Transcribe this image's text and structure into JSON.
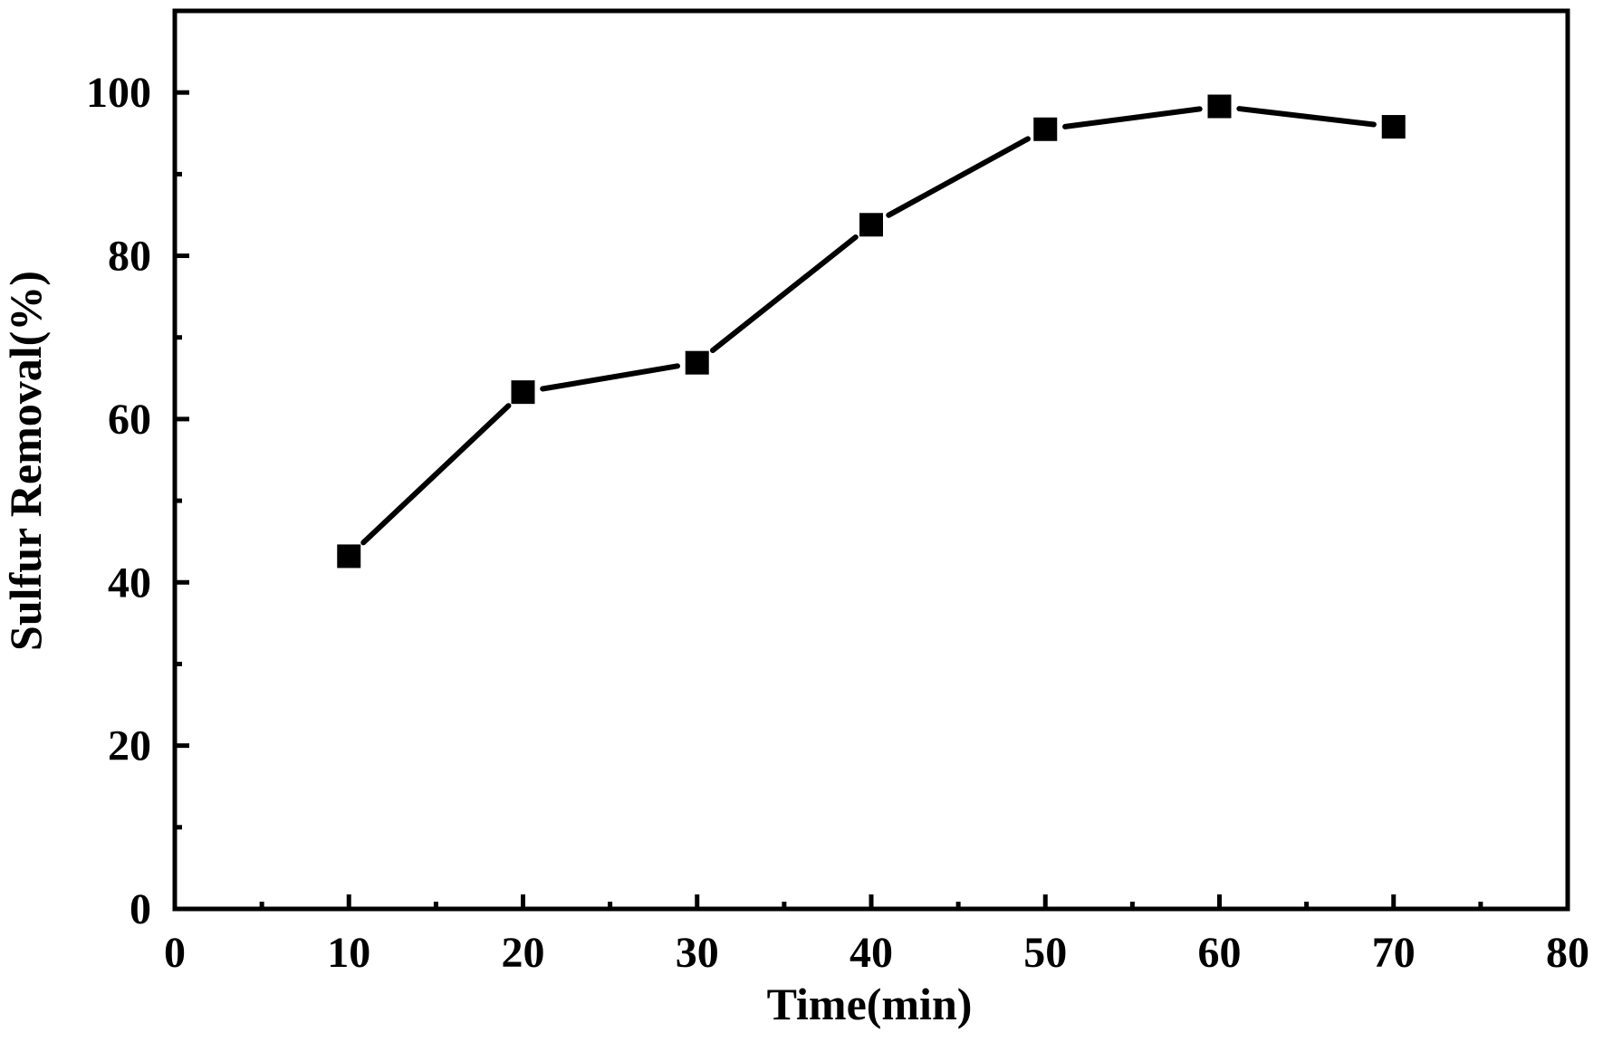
{
  "chart_data": {
    "type": "line",
    "title": "",
    "xlabel": "Time(min)",
    "ylabel": "Sulfur Removal(%)",
    "xlim": [
      0,
      80
    ],
    "ylim": [
      0,
      110
    ],
    "x_ticks": [
      0,
      10,
      20,
      30,
      40,
      50,
      60,
      70,
      80
    ],
    "x_tick_labels": [
      "0",
      "10",
      "20",
      "30",
      "40",
      "50",
      "60",
      "70",
      "80"
    ],
    "y_ticks": [
      0,
      20,
      40,
      60,
      80,
      100
    ],
    "y_tick_labels": [
      "0",
      "20",
      "40",
      "60",
      "80",
      "100"
    ],
    "grid": false,
    "legend": "none",
    "marker": "square",
    "colors": {
      "line": "#000000",
      "marker": "#000000",
      "frame": "#000000"
    },
    "series": [
      {
        "x": [
          10,
          20,
          30,
          40,
          50,
          60,
          70
        ],
        "values": [
          43.2,
          63.3,
          66.9,
          83.8,
          95.5,
          98.3,
          95.8
        ]
      }
    ]
  }
}
